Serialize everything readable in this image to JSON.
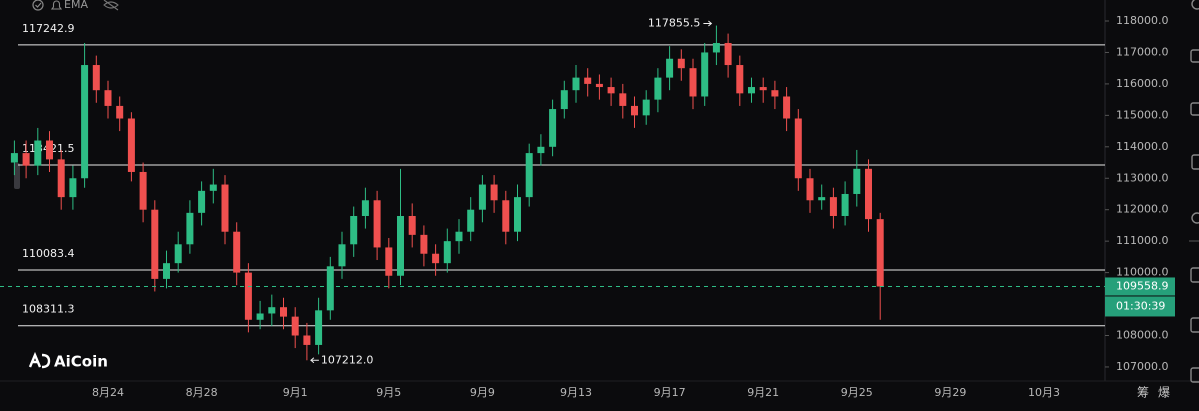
{
  "header": {
    "indicator": "EMA"
  },
  "logo": "AiCoin",
  "side_buttons": [
    "筹",
    "爆"
  ],
  "chart_data": {
    "type": "candlestick",
    "categories": [
      null,
      null,
      null,
      null,
      null,
      null,
      null,
      null,
      "8月24",
      null,
      null,
      null,
      null,
      null,
      null,
      null,
      "8月28",
      null,
      null,
      null,
      null,
      null,
      null,
      null,
      "9月1",
      null,
      null,
      null,
      null,
      null,
      null,
      null,
      "9月5",
      null,
      null,
      null,
      null,
      null,
      null,
      null,
      "9月9",
      null,
      null,
      null,
      null,
      null,
      null,
      null,
      "9月13",
      null,
      null,
      null,
      null,
      null,
      null,
      null,
      "9月17",
      null,
      null,
      null,
      null,
      null,
      null,
      null,
      "9月21",
      null,
      null,
      null,
      null,
      null,
      null,
      null,
      "9月25",
      null,
      null,
      null,
      null,
      null,
      null,
      null,
      "9月29",
      null,
      null,
      null,
      null,
      null,
      null,
      null,
      "10月3",
      null,
      null,
      null,
      null
    ],
    "open": [
      113500,
      113800,
      113400,
      114200,
      113600,
      112400,
      113000,
      116600,
      115800,
      115300,
      114900,
      113200,
      112000,
      109800,
      110300,
      110900,
      111900,
      112600,
      112800,
      111300,
      110000,
      108500,
      108700,
      108900,
      108600,
      108000,
      107700,
      108800,
      110200,
      110900,
      111800,
      112300,
      110800,
      109900,
      111800,
      111200,
      110600,
      110300,
      111000,
      111300,
      112000,
      112800,
      112300,
      111300,
      112400,
      113800,
      114000,
      115200,
      115800,
      116200,
      116000,
      115900,
      115700,
      115300,
      115000,
      115500,
      116200,
      116800,
      116500,
      115600,
      117000,
      117300,
      116600,
      115700,
      115900,
      115800,
      115600,
      114900,
      113000,
      112300,
      112400,
      111800,
      112500,
      113300,
      111700,
      null,
      null,
      null,
      null,
      null,
      null,
      null,
      null,
      null,
      null,
      null,
      null,
      null,
      null,
      null,
      null,
      null,
      null
    ],
    "high": [
      114200,
      114200,
      114600,
      114500,
      113900,
      113400,
      117300,
      116900,
      116100,
      115600,
      115100,
      113500,
      112300,
      110700,
      111300,
      112300,
      112900,
      113300,
      113100,
      111600,
      110300,
      109100,
      109300,
      109200,
      108900,
      108400,
      109200,
      110500,
      111300,
      112100,
      112700,
      112600,
      111100,
      113300,
      112200,
      111500,
      110900,
      111400,
      111700,
      112400,
      113100,
      113100,
      112600,
      112800,
      114100,
      114400,
      115500,
      116100,
      116600,
      116500,
      116300,
      116200,
      116000,
      115600,
      115800,
      116500,
      117200,
      117100,
      116800,
      117300,
      117855.5,
      117600,
      116900,
      116200,
      116200,
      116100,
      115900,
      115200,
      113300,
      112800,
      112700,
      112900,
      113900,
      113600,
      111900,
      null,
      null,
      null,
      null,
      null,
      null,
      null,
      null,
      null,
      null,
      null,
      null,
      null,
      null,
      null,
      null,
      null,
      null
    ],
    "low": [
      113100,
      113000,
      113100,
      113200,
      112000,
      112000,
      112700,
      115400,
      114900,
      114500,
      112900,
      111600,
      109400,
      109500,
      110000,
      110600,
      111500,
      112200,
      110900,
      109600,
      108100,
      108200,
      108300,
      108200,
      107600,
      107212,
      107400,
      108500,
      109800,
      110500,
      111400,
      110400,
      109500,
      109600,
      110800,
      110200,
      109900,
      110000,
      110600,
      111000,
      111600,
      111900,
      110900,
      111000,
      112100,
      113400,
      113700,
      114900,
      115400,
      115600,
      115500,
      115300,
      114900,
      114600,
      114700,
      115100,
      115800,
      116100,
      115200,
      115300,
      116600,
      116200,
      115300,
      115400,
      115400,
      115200,
      114500,
      112600,
      111900,
      112000,
      111400,
      111500,
      112100,
      111300,
      108500,
      null,
      null,
      null,
      null,
      null,
      null,
      null,
      null,
      null,
      null,
      null,
      null,
      null,
      null,
      null,
      null,
      null,
      null
    ],
    "close": [
      113800,
      113400,
      114200,
      113600,
      112400,
      113000,
      116600,
      115800,
      115300,
      114900,
      113200,
      112000,
      109800,
      110300,
      110900,
      111900,
      112600,
      112800,
      111300,
      110000,
      108500,
      108700,
      108900,
      108600,
      108000,
      107700,
      108800,
      110200,
      110900,
      111800,
      112300,
      110800,
      109900,
      111800,
      111200,
      110600,
      110300,
      111000,
      111300,
      112000,
      112800,
      112300,
      111300,
      112400,
      113800,
      114000,
      115200,
      115800,
      116200,
      116000,
      115900,
      115700,
      115300,
      115000,
      115500,
      116200,
      116800,
      116500,
      115600,
      117000,
      117300,
      116600,
      115700,
      115900,
      115800,
      115600,
      114900,
      113000,
      112300,
      112400,
      111800,
      112500,
      113300,
      111700,
      109558.9,
      null,
      null,
      null,
      null,
      null,
      null,
      null,
      null,
      null,
      null,
      null,
      null,
      null,
      null,
      null,
      null,
      null,
      null
    ],
    "up_color": "#2ebd85",
    "down_color": "#f0504f",
    "ylim": [
      106585,
      118668
    ],
    "yticks": [
      {
        "value": 107000,
        "label": "107000.0"
      },
      {
        "value": 108000,
        "label": "108000.0"
      },
      {
        "value": 109000,
        "label": "109000.0"
      },
      {
        "value": 110000,
        "label": "110000.0"
      },
      {
        "value": 111000,
        "label": "111000.0"
      },
      {
        "value": 112000,
        "label": "112000.0"
      },
      {
        "value": 113000,
        "label": "113000.0"
      },
      {
        "value": 114000,
        "label": "114000.0"
      },
      {
        "value": 115000,
        "label": "115000.0"
      },
      {
        "value": 116000,
        "label": "116000.0"
      },
      {
        "value": 117000,
        "label": "117000.0"
      },
      {
        "value": 118000,
        "label": "118000.0"
      }
    ],
    "levels": [
      117242.9,
      113421.5,
      110083.4,
      108311.3
    ],
    "annotations": [
      {
        "value": 117855.5,
        "label": "117855.5"
      },
      {
        "value": 107212,
        "label": "107212.0"
      }
    ],
    "last_price": 109558.9,
    "countdown": "01:30:39"
  }
}
